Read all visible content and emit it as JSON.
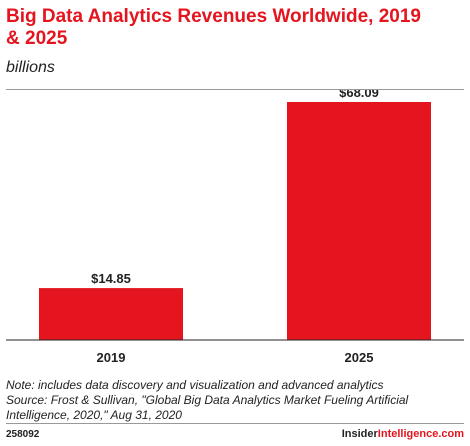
{
  "header": {
    "title": "Big Data Analytics Revenues Worldwide, 2019 & 2025",
    "subtitle": "billions"
  },
  "chart_data": {
    "type": "bar",
    "title": "Big Data Analytics Revenues Worldwide, 2019 & 2025",
    "subtitle": "billions",
    "categories": [
      "2019",
      "2025"
    ],
    "values": [
      14.85,
      68.09
    ],
    "value_labels": [
      "$14.85",
      "$68.09"
    ],
    "ylim": [
      0,
      68.09
    ],
    "grid": false,
    "bar_color": "#e4151f"
  },
  "footer": {
    "note": "Note: includes data discovery and visualization and advanced analytics",
    "source": "Source: Frost & Sullivan, \"Global Big Data Analytics Market Fueling Artificial Intelligence, 2020,\" Aug 31, 2020",
    "chart_id": "258092",
    "brand_a": "Insider",
    "brand_b": "Intelligence.com"
  },
  "colors": {
    "accent": "#e4151f",
    "text": "#222222",
    "rule": "#999999"
  }
}
